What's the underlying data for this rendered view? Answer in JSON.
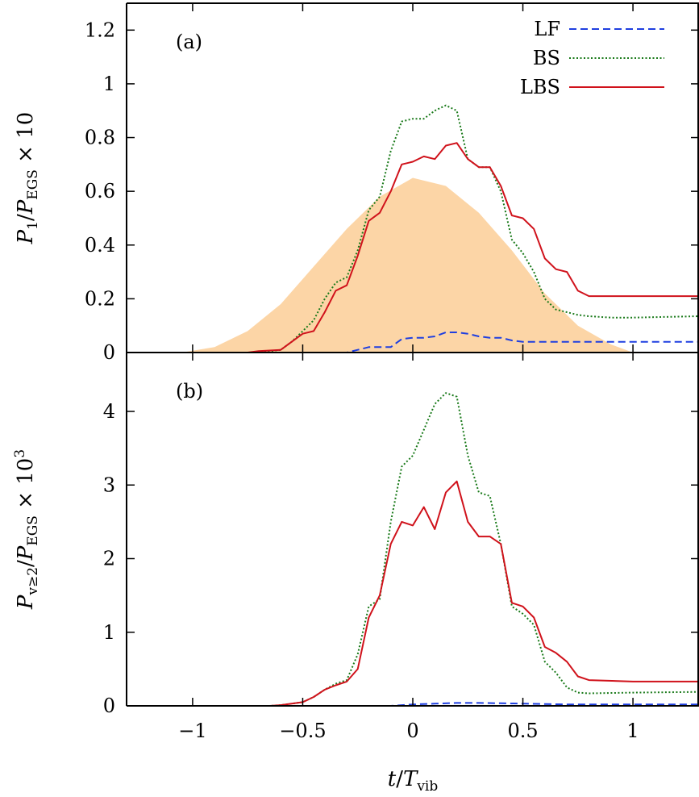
{
  "chart_data": [
    {
      "panel_label": "(a)",
      "type": "line",
      "ylabel": "P_1/P_EGS × 10",
      "ylabel_parts": {
        "main": "P",
        "sub1": "1",
        "mid": "/P",
        "sub2": "EGS",
        "tail": " × 10"
      },
      "xlim": [
        -1.3,
        1.3
      ],
      "ylim": [
        0,
        1.3
      ],
      "yticks": [
        0,
        0.2,
        0.4,
        0.6,
        0.8,
        1,
        1.2
      ],
      "ytick_labels": [
        "0",
        "0.2",
        "0.4",
        "0.6",
        "0.8",
        "1",
        "1.2"
      ],
      "legend": {
        "position": "top-right"
      },
      "background_pulse": {
        "color": "#fcd5a6",
        "x": [
          -1.05,
          -0.9,
          -0.75,
          -0.6,
          -0.45,
          -0.3,
          -0.15,
          0,
          0.15,
          0.3,
          0.45,
          0.6,
          0.75,
          0.9,
          1.0
        ],
        "y": [
          0,
          0.02,
          0.08,
          0.18,
          0.32,
          0.46,
          0.58,
          0.65,
          0.62,
          0.52,
          0.38,
          0.22,
          0.1,
          0.03,
          0
        ]
      },
      "series": [
        {
          "name": "LF",
          "color": "#1f3fe0",
          "dash": "dashed",
          "x": [
            -1.3,
            -0.3,
            -0.25,
            -0.2,
            -0.1,
            -0.05,
            0,
            0.05,
            0.1,
            0.15,
            0.2,
            0.25,
            0.3,
            0.35,
            0.4,
            0.45,
            0.5,
            0.6,
            0.8,
            1.0,
            1.3
          ],
          "y": [
            0,
            0,
            0.01,
            0.02,
            0.02,
            0.05,
            0.055,
            0.055,
            0.06,
            0.075,
            0.075,
            0.07,
            0.06,
            0.055,
            0.055,
            0.045,
            0.04,
            0.04,
            0.04,
            0.04,
            0.04
          ]
        },
        {
          "name": "BS",
          "color": "#1a7a1a",
          "dash": "dotted",
          "x": [
            -1.3,
            -0.7,
            -0.6,
            -0.55,
            -0.5,
            -0.45,
            -0.4,
            -0.35,
            -0.3,
            -0.25,
            -0.2,
            -0.15,
            -0.1,
            -0.05,
            0,
            0.05,
            0.1,
            0.15,
            0.2,
            0.25,
            0.3,
            0.35,
            0.4,
            0.45,
            0.5,
            0.55,
            0.6,
            0.65,
            0.7,
            0.75,
            0.8,
            0.9,
            1.0,
            1.3
          ],
          "y": [
            0,
            0,
            0.01,
            0.04,
            0.08,
            0.12,
            0.2,
            0.26,
            0.28,
            0.38,
            0.53,
            0.58,
            0.75,
            0.86,
            0.87,
            0.87,
            0.9,
            0.92,
            0.9,
            0.72,
            0.69,
            0.69,
            0.6,
            0.42,
            0.37,
            0.3,
            0.2,
            0.16,
            0.15,
            0.14,
            0.135,
            0.13,
            0.13,
            0.135
          ]
        },
        {
          "name": "LBS",
          "color": "#d0121b",
          "dash": "solid",
          "x": [
            -1.3,
            -0.75,
            -0.7,
            -0.6,
            -0.55,
            -0.5,
            -0.45,
            -0.4,
            -0.35,
            -0.3,
            -0.25,
            -0.2,
            -0.15,
            -0.1,
            -0.05,
            0,
            0.05,
            0.1,
            0.15,
            0.2,
            0.25,
            0.3,
            0.35,
            0.4,
            0.45,
            0.5,
            0.55,
            0.6,
            0.65,
            0.7,
            0.75,
            0.8,
            0.9,
            1.0,
            1.3
          ],
          "y": [
            0,
            0,
            0.005,
            0.01,
            0.04,
            0.07,
            0.08,
            0.15,
            0.23,
            0.25,
            0.36,
            0.49,
            0.52,
            0.6,
            0.7,
            0.71,
            0.73,
            0.72,
            0.77,
            0.78,
            0.72,
            0.69,
            0.69,
            0.62,
            0.51,
            0.5,
            0.46,
            0.35,
            0.31,
            0.3,
            0.23,
            0.21,
            0.21,
            0.21,
            0.21
          ]
        }
      ]
    },
    {
      "panel_label": "(b)",
      "type": "line",
      "ylabel": "P_v≥2/P_EGS × 10^3",
      "ylabel_parts": {
        "main": "P",
        "sub1": "v≥2",
        "mid": "/P",
        "sub2": "EGS",
        "tail": " × 10",
        "sup": "3"
      },
      "xlabel": "t/T_vib",
      "xlabel_parts": {
        "main": "t/T",
        "sub": "vib"
      },
      "xlim": [
        -1.3,
        1.3
      ],
      "ylim": [
        0,
        4.8
      ],
      "yticks": [
        0,
        1,
        2,
        3,
        4
      ],
      "ytick_labels": [
        "0",
        "1",
        "2",
        "3",
        "4"
      ],
      "xticks": [
        -1,
        -0.5,
        0,
        0.5,
        1
      ],
      "xtick_labels": [
        "−1",
        "−0.5",
        "0",
        "0.5",
        "1"
      ],
      "series": [
        {
          "name": "LF",
          "color": "#1f3fe0",
          "dash": "dashed",
          "x": [
            -1.3,
            -0.1,
            -0.05,
            0,
            0.1,
            0.2,
            0.3,
            0.4,
            0.5,
            0.7,
            1.0,
            1.3
          ],
          "y": [
            0,
            0,
            0.01,
            0.02,
            0.03,
            0.04,
            0.04,
            0.035,
            0.03,
            0.02,
            0.02,
            0.02
          ]
        },
        {
          "name": "BS",
          "color": "#1a7a1a",
          "dash": "dotted",
          "x": [
            -1.3,
            -0.65,
            -0.6,
            -0.5,
            -0.45,
            -0.4,
            -0.35,
            -0.3,
            -0.25,
            -0.2,
            -0.15,
            -0.1,
            -0.05,
            0,
            0.05,
            0.1,
            0.15,
            0.2,
            0.25,
            0.3,
            0.35,
            0.4,
            0.45,
            0.5,
            0.55,
            0.6,
            0.65,
            0.7,
            0.75,
            0.8,
            1.0,
            1.3
          ],
          "y": [
            0,
            0,
            0.01,
            0.05,
            0.12,
            0.22,
            0.3,
            0.35,
            0.7,
            1.35,
            1.45,
            2.5,
            3.25,
            3.4,
            3.75,
            4.1,
            4.25,
            4.2,
            3.4,
            2.9,
            2.85,
            2.2,
            1.35,
            1.25,
            1.1,
            0.6,
            0.45,
            0.25,
            0.18,
            0.17,
            0.18,
            0.19
          ]
        },
        {
          "name": "LBS",
          "color": "#d0121b",
          "dash": "solid",
          "x": [
            -1.3,
            -0.65,
            -0.6,
            -0.5,
            -0.45,
            -0.4,
            -0.35,
            -0.3,
            -0.25,
            -0.2,
            -0.15,
            -0.1,
            -0.05,
            0,
            0.05,
            0.1,
            0.15,
            0.2,
            0.25,
            0.3,
            0.35,
            0.4,
            0.45,
            0.5,
            0.55,
            0.6,
            0.65,
            0.7,
            0.75,
            0.8,
            1.0,
            1.3
          ],
          "y": [
            0,
            0,
            0.01,
            0.05,
            0.12,
            0.22,
            0.28,
            0.33,
            0.5,
            1.2,
            1.5,
            2.2,
            2.5,
            2.45,
            2.7,
            2.4,
            2.9,
            3.05,
            2.5,
            2.3,
            2.3,
            2.2,
            1.4,
            1.35,
            1.2,
            0.8,
            0.72,
            0.6,
            0.4,
            0.35,
            0.33,
            0.33
          ]
        }
      ]
    }
  ]
}
